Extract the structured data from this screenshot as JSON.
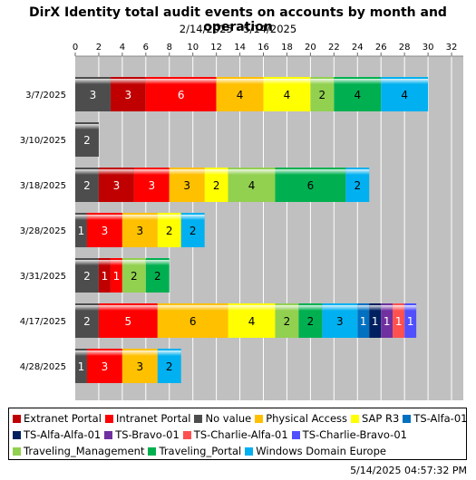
{
  "chart_data": {
    "type": "bar",
    "orientation": "horizontal",
    "stacked": true,
    "title": "DirX Identity total audit events on accounts by month and operation",
    "subtitle": "2/14/2025 - 5/14/2025",
    "xlabel": "",
    "ylabel": "",
    "xlim": [
      0,
      33
    ],
    "x_ticks": [
      0,
      2,
      4,
      6,
      8,
      10,
      12,
      14,
      16,
      18,
      20,
      22,
      24,
      26,
      28,
      30,
      32
    ],
    "grid": true,
    "legend_position": "bottom",
    "categories": [
      "3/7/2025",
      "3/10/2025",
      "3/18/2025",
      "3/28/2025",
      "3/31/2025",
      "4/17/2025",
      "4/28/2025"
    ],
    "series": [
      {
        "name": "Extranet Portal",
        "color": "#c00000",
        "values": [
          3,
          0,
          3,
          0,
          1,
          0,
          0
        ]
      },
      {
        "name": "Intranet Portal",
        "color": "#ff0000",
        "values": [
          6,
          0,
          3,
          3,
          1,
          5,
          3
        ]
      },
      {
        "name": "No value",
        "color": "#4d4d4d",
        "values": [
          3,
          2,
          2,
          1,
          2,
          2,
          1
        ]
      },
      {
        "name": "Physical Access",
        "color": "#ffc000",
        "values": [
          4,
          0,
          3,
          3,
          0,
          6,
          3
        ]
      },
      {
        "name": "SAP R3",
        "color": "#ffff00",
        "values": [
          4,
          0,
          2,
          2,
          0,
          4,
          0
        ]
      },
      {
        "name": "TS-Alfa-01",
        "color": "#0070c0",
        "values": [
          0,
          0,
          0,
          0,
          0,
          1,
          0
        ]
      },
      {
        "name": "TS-Alfa-Alfa-01",
        "color": "#002060",
        "values": [
          0,
          0,
          0,
          0,
          0,
          1,
          0
        ]
      },
      {
        "name": "TS-Bravo-01",
        "color": "#7030a0",
        "values": [
          0,
          0,
          0,
          0,
          0,
          1,
          0
        ]
      },
      {
        "name": "TS-Charlie-Alfa-01",
        "color": "#ff5050",
        "values": [
          0,
          0,
          0,
          0,
          0,
          1,
          0
        ]
      },
      {
        "name": "TS-Charlie-Bravo-01",
        "color": "#5050ff",
        "values": [
          0,
          0,
          0,
          0,
          0,
          1,
          0
        ]
      },
      {
        "name": "Traveling_Management",
        "color": "#92d050",
        "values": [
          2,
          0,
          4,
          0,
          2,
          2,
          0
        ]
      },
      {
        "name": "Traveling_Portal",
        "color": "#00b050",
        "values": [
          4,
          0,
          6,
          0,
          2,
          2,
          0
        ]
      },
      {
        "name": "Windows Domain Europe",
        "color": "#00b0f0",
        "values": [
          4,
          0,
          2,
          2,
          0,
          3,
          2
        ]
      }
    ],
    "bars": [
      {
        "category": "3/7/2025",
        "segments": [
          {
            "series": "No value",
            "value": 3
          },
          {
            "series": "Extranet Portal",
            "value": 3
          },
          {
            "series": "Intranet Portal",
            "value": 6
          },
          {
            "series": "Physical Access",
            "value": 4
          },
          {
            "series": "SAP R3",
            "value": 4
          },
          {
            "series": "Traveling_Management",
            "value": 2
          },
          {
            "series": "Traveling_Portal",
            "value": 4
          },
          {
            "series": "Windows Domain Europe",
            "value": 4
          }
        ]
      },
      {
        "category": "3/10/2025",
        "segments": [
          {
            "series": "No value",
            "value": 2
          }
        ]
      },
      {
        "category": "3/18/2025",
        "segments": [
          {
            "series": "No value",
            "value": 2
          },
          {
            "series": "Extranet Portal",
            "value": 3
          },
          {
            "series": "Intranet Portal",
            "value": 3
          },
          {
            "series": "Physical Access",
            "value": 3
          },
          {
            "series": "SAP R3",
            "value": 2
          },
          {
            "series": "Traveling_Management",
            "value": 4
          },
          {
            "series": "Traveling_Portal",
            "value": 6
          },
          {
            "series": "Windows Domain Europe",
            "value": 2
          }
        ]
      },
      {
        "category": "3/28/2025",
        "segments": [
          {
            "series": "No value",
            "value": 1
          },
          {
            "series": "Intranet Portal",
            "value": 3
          },
          {
            "series": "Physical Access",
            "value": 3
          },
          {
            "series": "SAP R3",
            "value": 2
          },
          {
            "series": "Windows Domain Europe",
            "value": 2
          }
        ]
      },
      {
        "category": "3/31/2025",
        "segments": [
          {
            "series": "No value",
            "value": 2
          },
          {
            "series": "Extranet Portal",
            "value": 1
          },
          {
            "series": "Intranet Portal",
            "value": 1
          },
          {
            "series": "Traveling_Management",
            "value": 2
          },
          {
            "series": "Traveling_Portal",
            "value": 2
          }
        ]
      },
      {
        "category": "4/17/2025",
        "segments": [
          {
            "series": "No value",
            "value": 2
          },
          {
            "series": "Intranet Portal",
            "value": 5
          },
          {
            "series": "Physical Access",
            "value": 6
          },
          {
            "series": "SAP R3",
            "value": 4
          },
          {
            "series": "Traveling_Management",
            "value": 2
          },
          {
            "series": "Traveling_Portal",
            "value": 2
          },
          {
            "series": "Windows Domain Europe",
            "value": 3
          },
          {
            "series": "TS-Alfa-01",
            "value": 1
          },
          {
            "series": "TS-Alfa-Alfa-01",
            "value": 1
          },
          {
            "series": "TS-Bravo-01",
            "value": 1
          },
          {
            "series": "TS-Charlie-Alfa-01",
            "value": 1
          },
          {
            "series": "TS-Charlie-Bravo-01",
            "value": 1
          }
        ]
      },
      {
        "category": "4/28/2025",
        "segments": [
          {
            "series": "No value",
            "value": 1
          },
          {
            "series": "Intranet Portal",
            "value": 3
          },
          {
            "series": "Physical Access",
            "value": 3
          },
          {
            "series": "Windows Domain Europe",
            "value": 2
          }
        ]
      }
    ]
  },
  "legend": {
    "rows": [
      [
        {
          "name": "Extranet Portal",
          "color": "#c00000"
        },
        {
          "name": "Intranet Portal",
          "color": "#ff0000"
        },
        {
          "name": "No value",
          "color": "#4d4d4d"
        },
        {
          "name": "Physical Access",
          "color": "#ffc000"
        },
        {
          "name": "SAP R3",
          "color": "#ffff00"
        },
        {
          "name": "TS-Alfa-01",
          "color": "#0070c0"
        }
      ],
      [
        {
          "name": "TS-Alfa-Alfa-01",
          "color": "#002060"
        },
        {
          "name": "TS-Bravo-01",
          "color": "#7030a0"
        },
        {
          "name": "TS-Charlie-Alfa-01",
          "color": "#ff5050"
        },
        {
          "name": "TS-Charlie-Bravo-01",
          "color": "#5050ff"
        }
      ],
      [
        {
          "name": "Traveling_Management",
          "color": "#92d050"
        },
        {
          "name": "Traveling_Portal",
          "color": "#00b050"
        },
        {
          "name": "Windows Domain Europe",
          "color": "#00b0f0"
        }
      ]
    ]
  },
  "timestamp": "5/14/2025 04:57:32 PM",
  "colors": {
    "plot_background": "#c0c0c0",
    "gridline": "#ffffff"
  }
}
